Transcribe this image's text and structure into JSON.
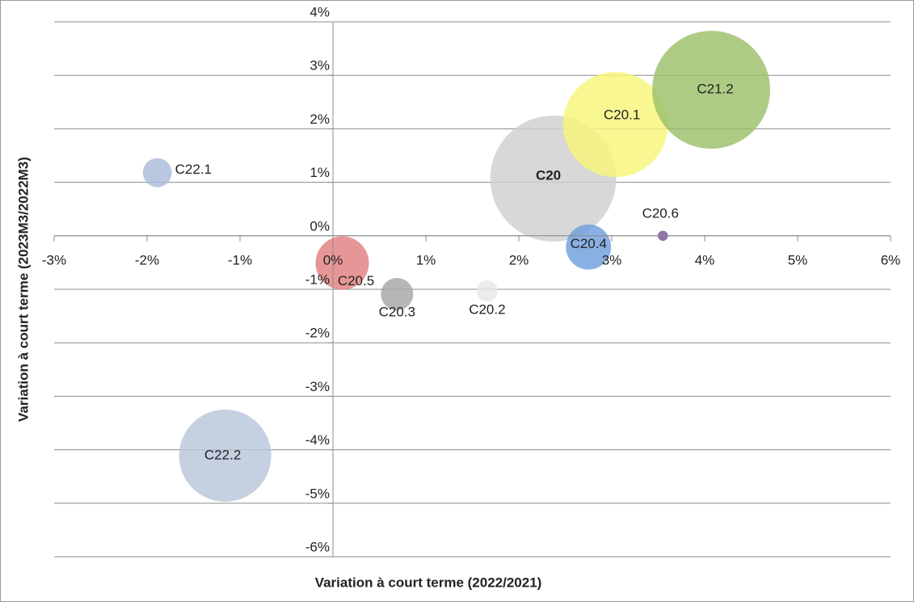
{
  "chart_data": {
    "type": "bubble",
    "x_label": "Variation à court terme (2022/2021)",
    "y_label": "Variation à court terme (2023M3/2022M3)",
    "xlim": [
      -3,
      6
    ],
    "xticks": [
      {
        "value": -3,
        "label": "-3%"
      },
      {
        "value": -2,
        "label": "-2%"
      },
      {
        "value": -1,
        "label": "-1%"
      },
      {
        "value": 0,
        "label": "0%"
      },
      {
        "value": 1,
        "label": "1%"
      },
      {
        "value": 2,
        "label": "2%"
      },
      {
        "value": 3,
        "label": "3%"
      },
      {
        "value": 4,
        "label": "4%"
      },
      {
        "value": 5,
        "label": "5%"
      },
      {
        "value": 6,
        "label": "6%"
      }
    ],
    "ylim": [
      -6,
      4
    ],
    "yticks": [
      {
        "value": -6,
        "label": "-6%"
      },
      {
        "value": -5,
        "label": "-5%"
      },
      {
        "value": -4,
        "label": "-4%"
      },
      {
        "value": -3,
        "label": "-3%"
      },
      {
        "value": -2,
        "label": "-2%"
      },
      {
        "value": -1,
        "label": "-1%"
      },
      {
        "value": 0,
        "label": "0%"
      },
      {
        "value": 1,
        "label": "1%"
      },
      {
        "value": 2,
        "label": "2%"
      },
      {
        "value": 3,
        "label": "3%"
      },
      {
        "value": 4,
        "label": "4%"
      }
    ],
    "grid": true,
    "points": [
      {
        "name": "C22.1",
        "x": -1.89,
        "y": 1.18,
        "size": 3.2,
        "color": "#a9bbd9"
      },
      {
        "name": "C22.2",
        "x": -1.16,
        "y": -4.11,
        "size": 32.5,
        "color": "#b8c6d9"
      },
      {
        "name": "C20.5",
        "x": 0.1,
        "y": -0.51,
        "size": 10.9,
        "color": "#e07f7f"
      },
      {
        "name": "C20.3",
        "x": 0.69,
        "y": -1.09,
        "size": 4.0,
        "color": "#a6a6a6"
      },
      {
        "name": "C20.2",
        "x": 1.66,
        "y": -1.03,
        "size": 1.7,
        "color": "#e6e6e6"
      },
      {
        "name": "C20",
        "x": 2.37,
        "y": 1.07,
        "size": 60.8,
        "color": "#d0d0d0"
      },
      {
        "name": "C20.4",
        "x": 2.75,
        "y": -0.21,
        "size": 7.8,
        "color": "#6f9fdc"
      },
      {
        "name": "C20.6",
        "x": 3.55,
        "y": 0.0,
        "size": 0.4,
        "color": "#7a559a"
      },
      {
        "name": "C20.1",
        "x": 3.04,
        "y": 2.08,
        "size": 42.3,
        "color": "#f7f57a"
      },
      {
        "name": "C21.2",
        "x": 4.07,
        "y": 2.73,
        "size": 53.3,
        "color": "#9bbf6a"
      }
    ]
  }
}
